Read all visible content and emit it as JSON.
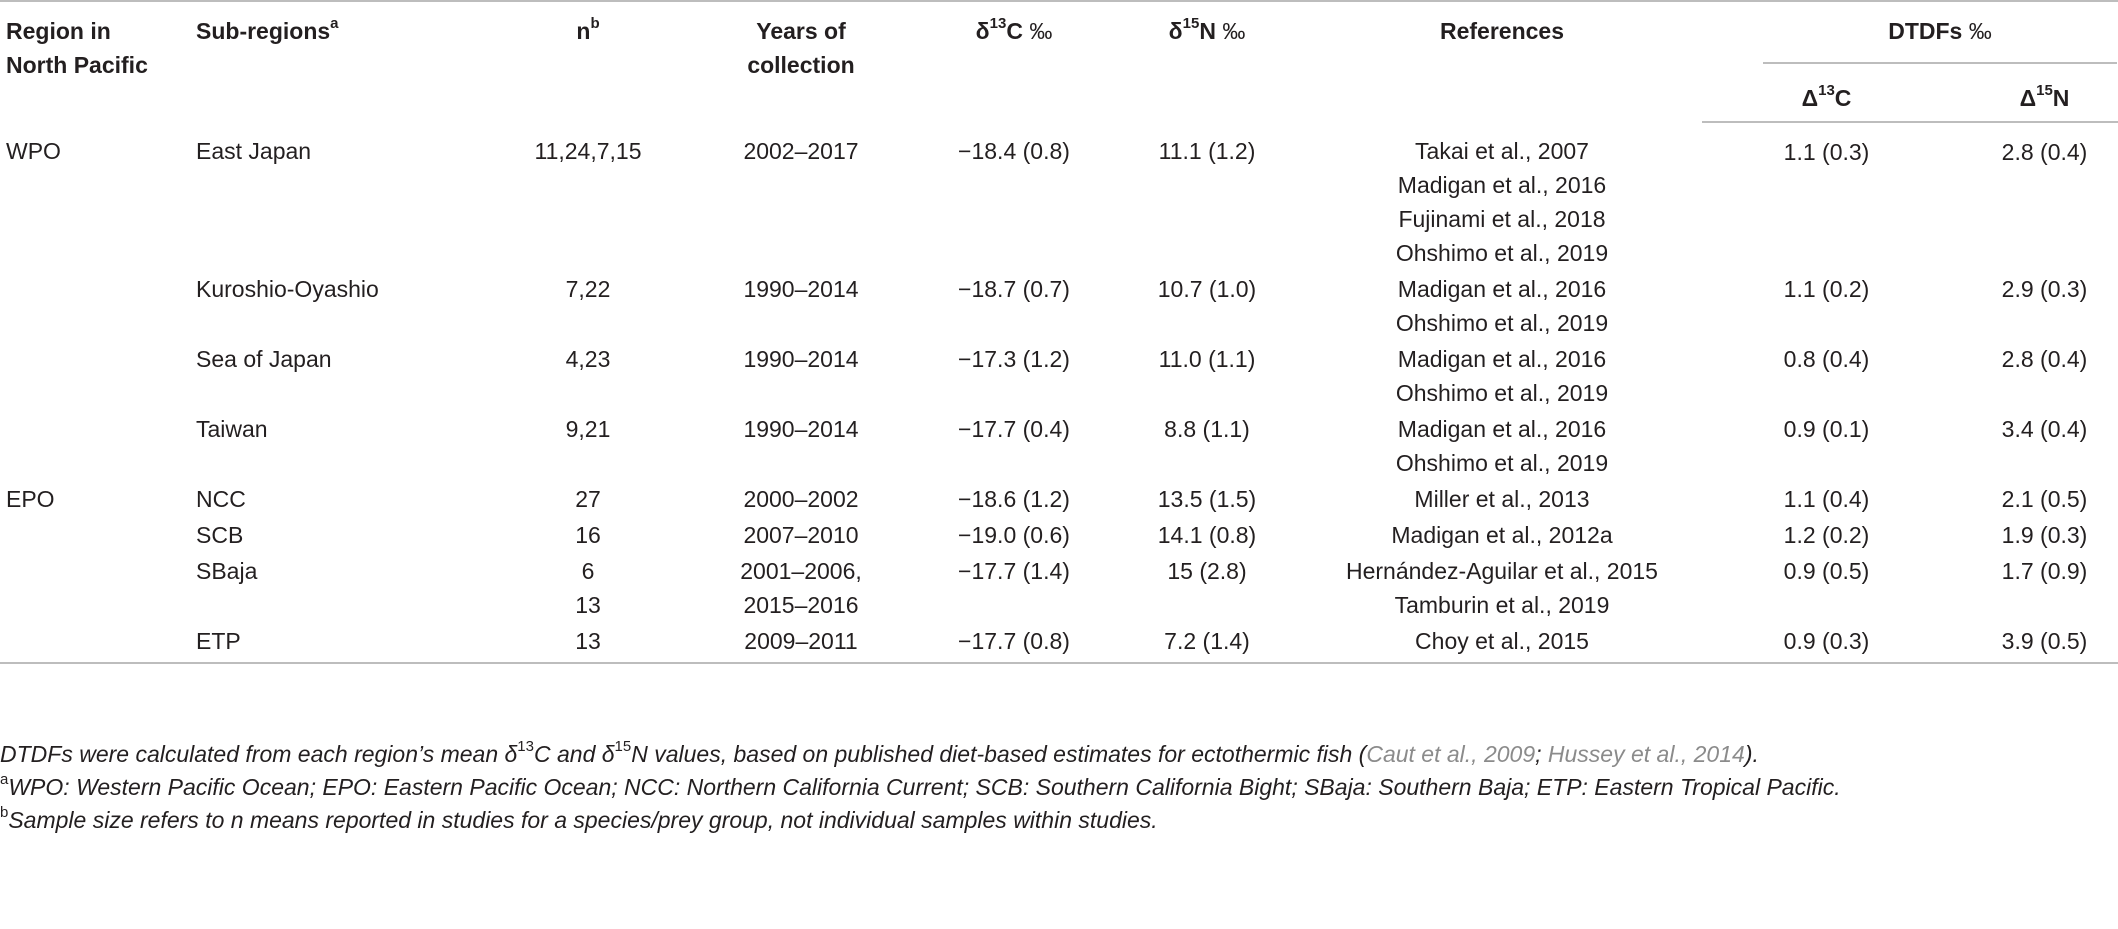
{
  "header": {
    "region_line1": "Region in",
    "region_line2": "North Pacific",
    "subregions": "Sub-regions",
    "subregions_sup": "a",
    "n": "n",
    "n_sup": "b",
    "years_line1": "Years of",
    "years_line2": "collection",
    "d13c_delta": "δ",
    "d13c_mass": "13",
    "d13c_el": "C",
    "d15n_delta": "δ",
    "d15n_mass": "15",
    "d15n_el": "N",
    "permil": "‰",
    "references": "References",
    "dtdfs": "DTDFs",
    "big_delta": "Δ",
    "c13_mass": "13",
    "c13_el": "C",
    "n15_mass": "15",
    "n15_el": "N"
  },
  "rows": [
    {
      "region": "WPO",
      "sub": "East Japan",
      "n": "11,24,7,15",
      "years": [
        "2002–2017"
      ],
      "d13c": "−18.4 (0.8)",
      "d15n": "11.1 (1.2)",
      "refs": [
        "Takai et al., 2007",
        "Madigan et al., 2016",
        "Fujinami et al., 2018",
        "Ohshimo et al., 2019"
      ],
      "dc": "1.1 (0.3)",
      "dn": "2.8 (0.4)"
    },
    {
      "region": "",
      "sub": "Kuroshio-Oyashio",
      "n": "7,22",
      "years": [
        "1990–2014"
      ],
      "d13c": "−18.7 (0.7)",
      "d15n": "10.7 (1.0)",
      "refs": [
        "Madigan et al., 2016",
        "Ohshimo et al., 2019"
      ],
      "dc": "1.1 (0.2)",
      "dn": "2.9 (0.3)"
    },
    {
      "region": "",
      "sub": "Sea of Japan",
      "n": "4,23",
      "years": [
        "1990–2014"
      ],
      "d13c": "−17.3 (1.2)",
      "d15n": "11.0 (1.1)",
      "refs": [
        "Madigan et al., 2016",
        "Ohshimo et al., 2019"
      ],
      "dc": "0.8 (0.4)",
      "dn": "2.8 (0.4)"
    },
    {
      "region": "",
      "sub": "Taiwan",
      "n": "9,21",
      "years": [
        "1990–2014"
      ],
      "d13c": "−17.7 (0.4)",
      "d15n": "8.8 (1.1)",
      "refs": [
        "Madigan et al., 2016",
        "Ohshimo et al., 2019"
      ],
      "dc": "0.9 (0.1)",
      "dn": "3.4 (0.4)"
    },
    {
      "region": "EPO",
      "sub": "NCC",
      "n": "27",
      "years": [
        "2000–2002"
      ],
      "d13c": "−18.6 (1.2)",
      "d15n": "13.5 (1.5)",
      "refs": [
        "Miller et al., 2013"
      ],
      "dc": "1.1 (0.4)",
      "dn": "2.1 (0.5)"
    },
    {
      "region": "",
      "sub": "SCB",
      "n": "16",
      "years": [
        "2007–2010"
      ],
      "d13c": "−19.0 (0.6)",
      "d15n": "14.1 (0.8)",
      "refs": [
        "Madigan et al., 2012a"
      ],
      "dc": "1.2 (0.2)",
      "dn": "1.9 (0.3)"
    },
    {
      "region": "",
      "sub": "SBaja",
      "n": "6\n13",
      "years": [
        "2001–2006,",
        "2015–2016"
      ],
      "d13c": "−17.7 (1.4)",
      "d15n": "15 (2.8)",
      "refs": [
        "Hernández-Aguilar et al., 2015",
        "Tamburin et al., 2019"
      ],
      "dc": "0.9 (0.5)",
      "dn": "1.7 (0.9)"
    },
    {
      "region": "",
      "sub": "ETP",
      "n": "13",
      "years": [
        "2009–2011"
      ],
      "d13c": "−17.7 (0.8)",
      "d15n": "7.2 (1.4)",
      "refs": [
        "Choy et al., 2015"
      ],
      "dc": "0.9 (0.3)",
      "dn": "3.9 (0.5)"
    }
  ],
  "notes": {
    "main_a": "DTDFs were calculated from each region’s mean δ",
    "main_13": "13",
    "main_b": "C and δ",
    "main_15": "15",
    "main_c": "N values, based on published diet-based estimates for ectothermic fish (",
    "cite1": "Caut et al., 2009",
    "sep": "; ",
    "cite2": "Hussey et al., 2014",
    "main_end": ").",
    "a_sup": "a",
    "a_text": "WPO: Western Pacific Ocean; EPO: Eastern Pacific Ocean; NCC: Northern California Current; SCB: Southern California Bight; SBaja: Southern Baja; ETP: Eastern Tropical Pacific.",
    "b_sup": "b",
    "b_text": "Sample size refers to n means reported in studies for a species/prey group, not individual samples within studies."
  }
}
